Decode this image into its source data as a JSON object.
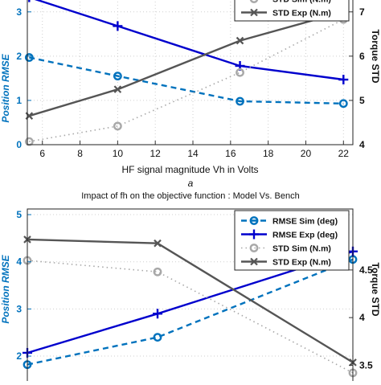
{
  "chart_data": [
    {
      "type": "line",
      "panel_label": "a",
      "title": "",
      "xlabel": "HF signal magnitude Vh in Volts",
      "ylabel_left": "Position RMSE",
      "ylabel_right": "Torque STD",
      "x_ticks": [
        "6",
        "8",
        "10",
        "12",
        "14",
        "16",
        "18",
        "20",
        "22"
      ],
      "yleft_ticks": [
        "0",
        "1",
        "2",
        "3"
      ],
      "yright_ticks": [
        "4",
        "5",
        "6",
        "7"
      ],
      "xlim": [
        5.2,
        22.5
      ],
      "ylim_left": [
        0,
        3.45
      ],
      "ylim_right": [
        4,
        7.45
      ],
      "legend_visible": [
        "STD Sim (N.m)",
        "STD Exp (N.m)"
      ],
      "series": [
        {
          "name": "RMSE Sim (deg)",
          "axis": "left",
          "color": "#0072bd",
          "style": "dashed",
          "marker": "o",
          "x": [
            5.3,
            10,
            16.5,
            22
          ],
          "y": [
            1.97,
            1.55,
            0.98,
            0.93
          ]
        },
        {
          "name": "RMSE Exp (deg)",
          "axis": "left",
          "color": "#0000cd",
          "style": "solid",
          "marker": "+",
          "x": [
            5.3,
            10,
            16.5,
            22
          ],
          "y": [
            3.33,
            2.68,
            1.78,
            1.47
          ]
        },
        {
          "name": "STD Sim (N.m)",
          "axis": "right",
          "color": "#a8a8a8",
          "style": "dotted",
          "marker": "o",
          "x": [
            5.3,
            10,
            16.5,
            22
          ],
          "y": [
            4.07,
            4.42,
            5.63,
            6.83
          ]
        },
        {
          "name": "STD Exp (N.m)",
          "axis": "right",
          "color": "#555555",
          "style": "solid",
          "marker": "x",
          "x": [
            5.3,
            10,
            16.5,
            22
          ],
          "y": [
            4.65,
            5.25,
            6.35,
            7.0
          ]
        }
      ]
    },
    {
      "type": "line",
      "title": "Impact of fh on the objective function : Model Vs. Bench",
      "ylabel_left": "Position RMSE",
      "ylabel_right": "Torque STD",
      "yleft_ticks": [
        "2",
        "3",
        "4",
        "5"
      ],
      "yright_ticks": [
        "3.5",
        "4",
        "4.5"
      ],
      "ylim_left": [
        1.2,
        5.12
      ],
      "ylim_right": [
        3.2,
        5.14
      ],
      "xlim": [
        0,
        1
      ],
      "legend": [
        "RMSE Sim (deg)",
        "RMSE Exp (deg)",
        "STD Sim (N.m)",
        "STD Exp (N.m)"
      ],
      "series": [
        {
          "name": "RMSE Sim (deg)",
          "axis": "left",
          "color": "#0072bd",
          "style": "dashed",
          "marker": "o",
          "x": [
            0,
            0.4,
            1
          ],
          "y": [
            1.82,
            2.4,
            4.05
          ]
        },
        {
          "name": "RMSE Exp (deg)",
          "axis": "left",
          "color": "#0000cd",
          "style": "solid",
          "marker": "+",
          "x": [
            0,
            0.4,
            1
          ],
          "y": [
            2.07,
            2.9,
            4.22
          ]
        },
        {
          "name": "STD Sim (N.m)",
          "axis": "right",
          "color": "#a8a8a8",
          "style": "dotted",
          "marker": "o",
          "x": [
            0,
            0.4,
            1
          ],
          "y": [
            4.6,
            4.48,
            3.42
          ]
        },
        {
          "name": "STD Exp (N.m)",
          "axis": "right",
          "color": "#555555",
          "style": "solid",
          "marker": "x",
          "x": [
            0,
            0.4,
            1
          ],
          "y": [
            4.82,
            4.78,
            3.53
          ]
        }
      ]
    }
  ]
}
